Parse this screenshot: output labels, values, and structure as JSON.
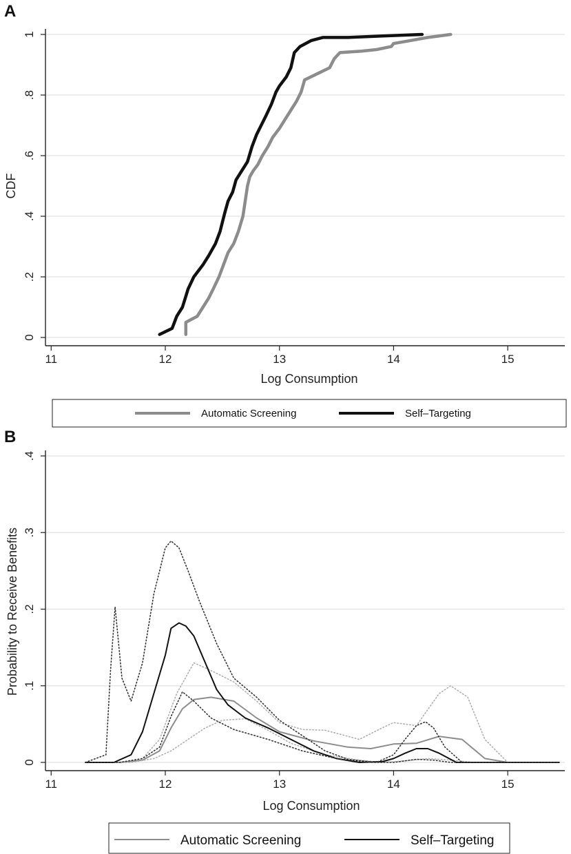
{
  "chart_data": [
    {
      "type": "line",
      "panel_label": "A",
      "xlabel": "Log Consumption",
      "ylabel": "CDF",
      "xlim": [
        10.95,
        15.5
      ],
      "ylim": [
        0,
        1
      ],
      "xticks": [
        "11",
        "12",
        "13",
        "14",
        "15"
      ],
      "yticks": [
        "0",
        ".2",
        ".4",
        ".6",
        ".8",
        "1"
      ],
      "grid": true,
      "legend_position": "bottom",
      "series": [
        {
          "name": "Automatic Screening",
          "color": "#8c8c8c",
          "x": [
            12.18,
            12.18,
            12.28,
            12.33,
            12.38,
            12.42,
            12.47,
            12.51,
            12.55,
            12.6,
            12.64,
            12.68,
            12.7,
            12.72,
            12.74,
            12.77,
            12.81,
            12.85,
            12.9,
            12.94,
            13.0,
            13.05,
            13.1,
            13.15,
            13.19,
            13.22,
            13.33,
            13.44,
            13.48,
            13.53,
            13.72,
            13.85,
            13.98,
            14.0,
            14.15,
            14.3,
            14.5
          ],
          "y": [
            0.01,
            0.05,
            0.07,
            0.1,
            0.13,
            0.16,
            0.2,
            0.24,
            0.28,
            0.31,
            0.35,
            0.4,
            0.45,
            0.5,
            0.53,
            0.55,
            0.57,
            0.6,
            0.63,
            0.66,
            0.69,
            0.72,
            0.75,
            0.78,
            0.81,
            0.85,
            0.87,
            0.89,
            0.92,
            0.94,
            0.945,
            0.95,
            0.96,
            0.97,
            0.98,
            0.99,
            1.0
          ]
        },
        {
          "name": "Self–Targeting",
          "color": "#111111",
          "x": [
            11.95,
            12.06,
            12.1,
            12.15,
            12.2,
            12.25,
            12.33,
            12.38,
            12.44,
            12.48,
            12.52,
            12.55,
            12.59,
            12.62,
            12.67,
            12.72,
            12.76,
            12.8,
            12.84,
            12.88,
            12.93,
            12.97,
            13.0,
            13.06,
            13.1,
            13.13,
            13.18,
            13.28,
            13.38,
            13.6,
            13.9,
            14.25
          ],
          "y": [
            0.01,
            0.03,
            0.07,
            0.1,
            0.16,
            0.2,
            0.24,
            0.27,
            0.31,
            0.35,
            0.41,
            0.45,
            0.48,
            0.52,
            0.55,
            0.58,
            0.63,
            0.67,
            0.7,
            0.73,
            0.77,
            0.81,
            0.83,
            0.86,
            0.89,
            0.94,
            0.96,
            0.98,
            0.99,
            0.99,
            0.995,
            1.0
          ]
        }
      ]
    },
    {
      "type": "line",
      "panel_label": "B",
      "xlabel": "Log Consumption",
      "ylabel": "Probability to Receive Benefits",
      "xlim": [
        10.95,
        15.5
      ],
      "ylim": [
        0,
        0.4
      ],
      "xticks": [
        "11",
        "12",
        "13",
        "14",
        "15"
      ],
      "yticks": [
        "0",
        ".1",
        ".2",
        ".3",
        ".4"
      ],
      "grid": true,
      "legend_position": "bottom",
      "series": [
        {
          "name": "Automatic Screening",
          "color": "#8c8c8c",
          "style": "solid",
          "x": [
            11.3,
            11.6,
            11.8,
            11.95,
            12.05,
            12.15,
            12.25,
            12.4,
            12.6,
            12.8,
            13.0,
            13.3,
            13.6,
            13.8,
            14.0,
            14.2,
            14.4,
            14.6,
            14.8,
            15.0,
            15.45
          ],
          "y": [
            0,
            0,
            0.003,
            0.015,
            0.045,
            0.07,
            0.082,
            0.085,
            0.08,
            0.058,
            0.04,
            0.028,
            0.02,
            0.018,
            0.024,
            0.025,
            0.034,
            0.03,
            0.005,
            0,
            0
          ]
        },
        {
          "name": "Automatic Screening upper CI",
          "color": "#b0b0b0",
          "style": "dotted",
          "x": [
            11.3,
            11.6,
            11.8,
            11.95,
            12.1,
            12.25,
            12.4,
            12.6,
            12.8,
            13.0,
            13.2,
            13.4,
            13.7,
            13.9,
            14.0,
            14.2,
            14.4,
            14.5,
            14.65,
            14.8,
            15.0,
            15.45
          ],
          "y": [
            0,
            0,
            0.005,
            0.03,
            0.09,
            0.13,
            0.12,
            0.105,
            0.08,
            0.052,
            0.043,
            0.042,
            0.03,
            0.045,
            0.052,
            0.048,
            0.09,
            0.1,
            0.085,
            0.03,
            0,
            0
          ]
        },
        {
          "name": "Automatic Screening lower CI",
          "color": "#b0b0b0",
          "style": "dotted",
          "x": [
            11.3,
            11.7,
            11.9,
            12.05,
            12.2,
            12.35,
            12.5,
            12.7,
            12.9,
            13.1,
            13.4,
            13.7,
            13.9,
            14.1,
            14.3,
            14.5,
            14.7,
            15.0,
            15.45
          ],
          "y": [
            0,
            0,
            0.005,
            0.015,
            0.03,
            0.045,
            0.055,
            0.057,
            0.042,
            0.025,
            0.01,
            0.003,
            0.0,
            0.002,
            0.005,
            0.003,
            0.0,
            0,
            0
          ]
        },
        {
          "name": "Self–Targeting",
          "color": "#111111",
          "style": "solid",
          "x": [
            11.3,
            11.55,
            11.7,
            11.8,
            11.9,
            12.0,
            12.05,
            12.12,
            12.18,
            12.25,
            12.35,
            12.45,
            12.55,
            12.7,
            12.9,
            13.1,
            13.3,
            13.5,
            13.7,
            13.9,
            14.0,
            14.1,
            14.2,
            14.3,
            14.4,
            14.55,
            15.45
          ],
          "y": [
            0,
            0,
            0.01,
            0.04,
            0.09,
            0.14,
            0.175,
            0.182,
            0.178,
            0.165,
            0.13,
            0.095,
            0.075,
            0.058,
            0.045,
            0.03,
            0.015,
            0.005,
            0.0,
            0.001,
            0.005,
            0.012,
            0.018,
            0.018,
            0.012,
            0,
            0
          ]
        },
        {
          "name": "Self–Targeting upper CI",
          "color": "#333333",
          "style": "dotted",
          "x": [
            11.3,
            11.48,
            11.52,
            11.56,
            11.62,
            11.7,
            11.8,
            11.9,
            12.0,
            12.05,
            12.12,
            12.2,
            12.3,
            12.45,
            12.6,
            12.8,
            13.0,
            13.2,
            13.4,
            13.6,
            13.85,
            14.0,
            14.1,
            14.2,
            14.28,
            14.35,
            14.45,
            14.6,
            15.45
          ],
          "y": [
            0,
            0.01,
            0.12,
            0.203,
            0.11,
            0.08,
            0.13,
            0.22,
            0.28,
            0.289,
            0.28,
            0.25,
            0.21,
            0.155,
            0.11,
            0.085,
            0.055,
            0.035,
            0.015,
            0.004,
            0.0,
            0.01,
            0.03,
            0.048,
            0.053,
            0.045,
            0.02,
            0,
            0
          ]
        },
        {
          "name": "Self–Targeting lower CI",
          "color": "#333333",
          "style": "dotted",
          "x": [
            11.3,
            11.6,
            11.8,
            11.95,
            12.05,
            12.15,
            12.25,
            12.4,
            12.6,
            12.9,
            13.2,
            13.5,
            13.8,
            14.0,
            14.2,
            14.35,
            14.5,
            15.45
          ],
          "y": [
            0,
            0,
            0.005,
            0.02,
            0.06,
            0.092,
            0.08,
            0.058,
            0.043,
            0.03,
            0.015,
            0.005,
            0.0,
            0.0,
            0.004,
            0.003,
            0.0,
            0
          ]
        }
      ]
    }
  ],
  "legendA": {
    "items": [
      "Automatic Screening",
      "Self–Targeting"
    ]
  },
  "legendB": {
    "items": [
      "Automatic Screening",
      "Self–Targeting"
    ]
  }
}
